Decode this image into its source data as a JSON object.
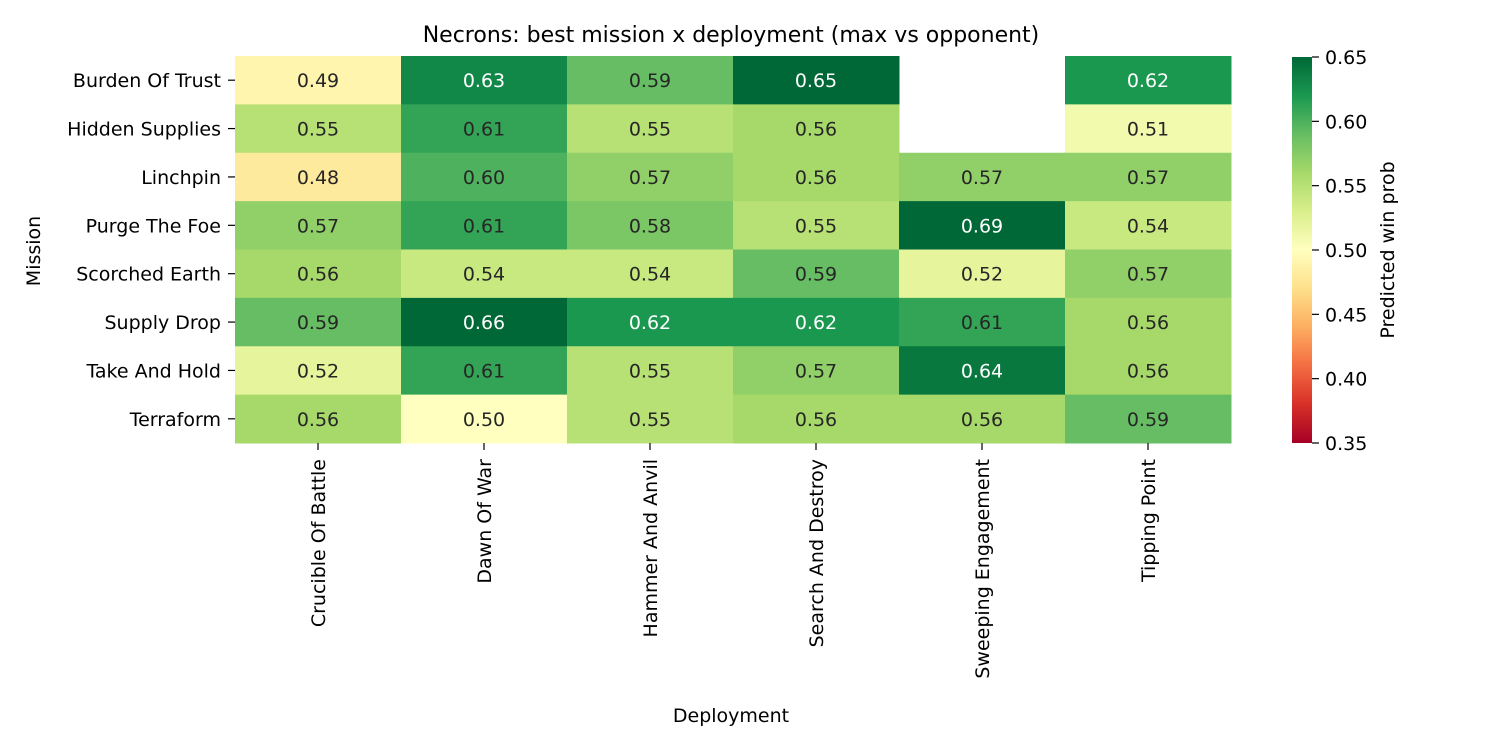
{
  "chart_data": {
    "type": "heatmap",
    "title": "Necrons: best mission x deployment (max vs opponent)",
    "xlabel": "Deployment",
    "ylabel": "Mission",
    "x_categories": [
      "Crucible Of Battle",
      "Dawn Of War",
      "Hammer And Anvil",
      "Search And Destroy",
      "Sweeping Engagement",
      "Tipping Point"
    ],
    "y_categories": [
      "Burden Of Trust",
      "Hidden Supplies",
      "Linchpin",
      "Purge The Foe",
      "Scorched Earth",
      "Supply Drop",
      "Take And Hold",
      "Terraform"
    ],
    "values": [
      [
        0.49,
        0.63,
        0.59,
        0.65,
        null,
        0.62
      ],
      [
        0.55,
        0.61,
        0.55,
        0.56,
        null,
        0.51
      ],
      [
        0.48,
        0.6,
        0.57,
        0.56,
        0.57,
        0.57
      ],
      [
        0.57,
        0.61,
        0.58,
        0.55,
        0.69,
        0.54
      ],
      [
        0.56,
        0.54,
        0.54,
        0.59,
        0.52,
        0.57
      ],
      [
        0.59,
        0.66,
        0.62,
        0.62,
        0.61,
        0.56
      ],
      [
        0.52,
        0.61,
        0.55,
        0.57,
        0.64,
        0.56
      ],
      [
        0.56,
        0.5,
        0.55,
        0.56,
        0.56,
        0.59
      ]
    ],
    "colorbar": {
      "label": "Predicted win prob",
      "vmin": 0.35,
      "vmax": 0.65,
      "ticks": [
        0.35,
        0.4,
        0.45,
        0.5,
        0.55,
        0.6,
        0.65
      ],
      "colormap": "RdYlGn"
    },
    "annotations": true,
    "grid": false,
    "legend": "none"
  }
}
